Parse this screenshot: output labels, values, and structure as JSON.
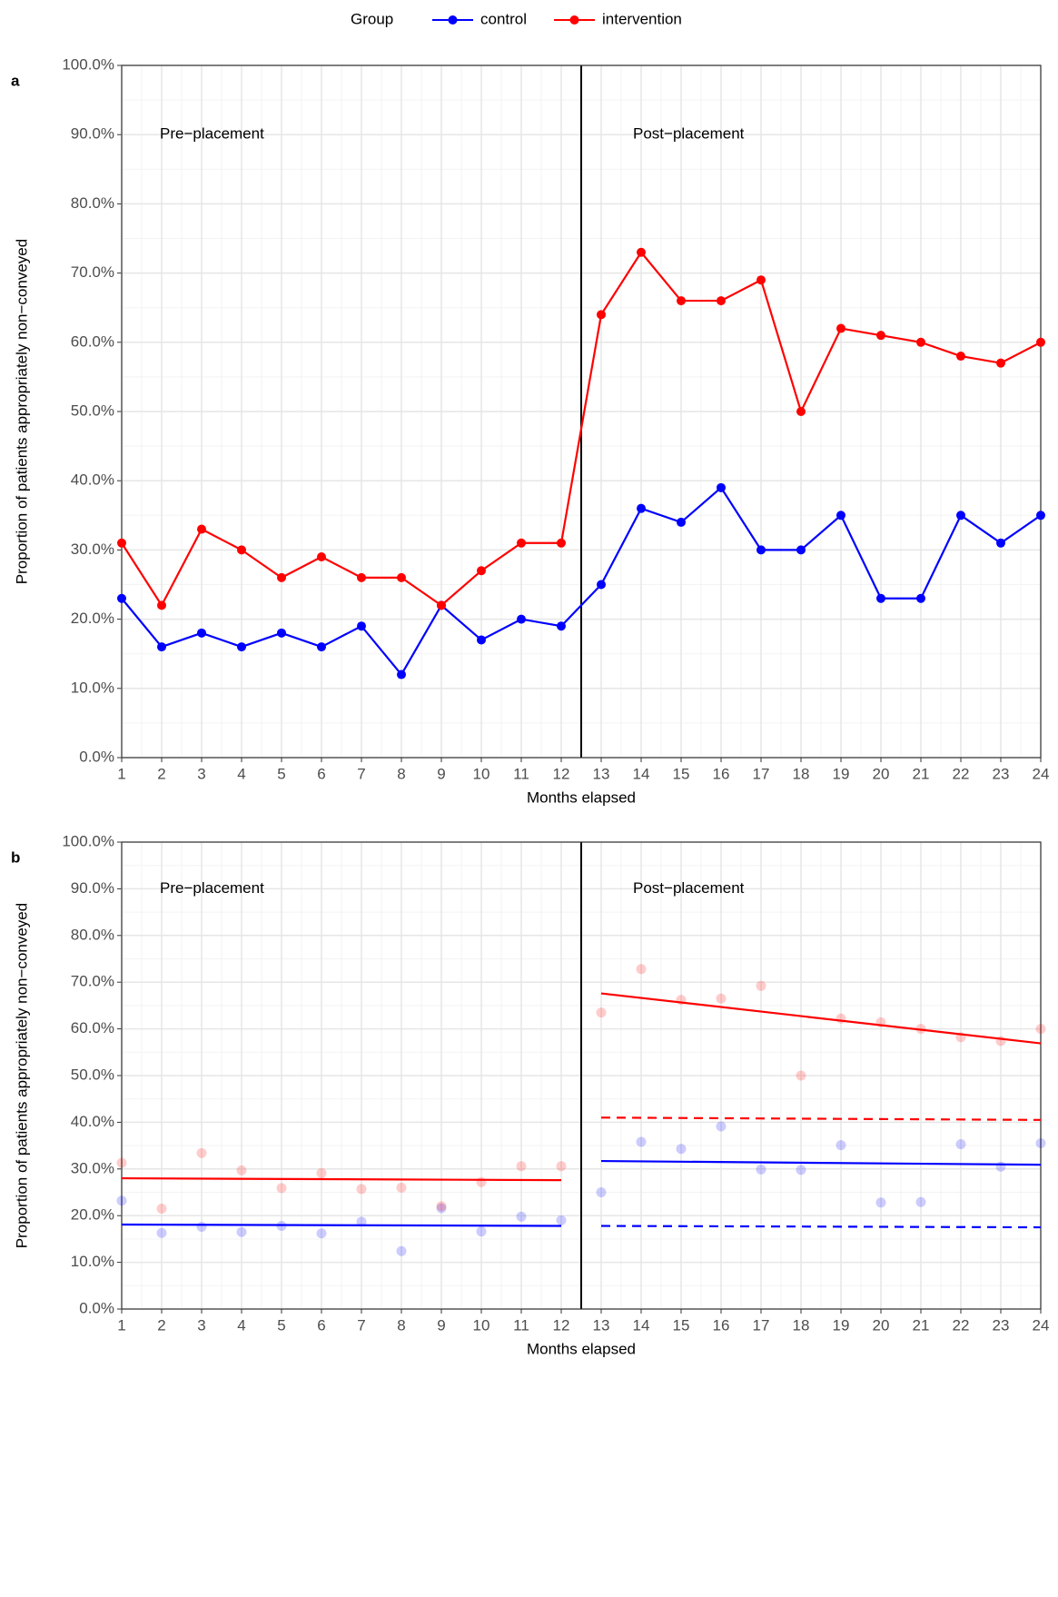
{
  "chart_data": [
    {
      "type": "line",
      "panel_label": "a",
      "legend_title": "Group",
      "legend": "top",
      "annotations": [
        "Pre−placement",
        "Post−placement"
      ],
      "x_label": "Months elapsed",
      "y_label": "Proportion of patients appropriately non−conveyed",
      "x": [
        1,
        2,
        3,
        4,
        5,
        6,
        7,
        8,
        9,
        10,
        11,
        12,
        13,
        14,
        15,
        16,
        17,
        18,
        19,
        20,
        21,
        22,
        23,
        24
      ],
      "series": [
        {
          "name": "control",
          "color": "#0000ff",
          "values": [
            23,
            16,
            18,
            16,
            18,
            16,
            19,
            12,
            22,
            17,
            20,
            19,
            25,
            36,
            34,
            39,
            30,
            30,
            35,
            23,
            23,
            35,
            31,
            35
          ]
        },
        {
          "name": "intervention",
          "color": "#ff0000",
          "values": [
            31,
            22,
            33,
            30,
            26,
            29,
            26,
            26,
            22,
            27,
            31,
            31,
            64,
            73,
            66,
            66,
            69,
            50,
            62,
            61,
            60,
            58,
            57,
            60
          ]
        }
      ],
      "xlim": [
        1,
        24
      ],
      "xticks": [
        1,
        2,
        3,
        4,
        5,
        6,
        7,
        8,
        9,
        10,
        11,
        12,
        13,
        14,
        15,
        16,
        17,
        18,
        19,
        20,
        21,
        22,
        23,
        24
      ],
      "ylim": [
        0,
        100
      ],
      "yticks": [
        {
          "value": 0,
          "label": "0.0%"
        },
        {
          "value": 10,
          "label": "10.0%"
        },
        {
          "value": 20,
          "label": "20.0%"
        },
        {
          "value": 30,
          "label": "30.0%"
        },
        {
          "value": 40,
          "label": "40.0%"
        },
        {
          "value": 50,
          "label": "50.0%"
        },
        {
          "value": 60,
          "label": "60.0%"
        },
        {
          "value": 70,
          "label": "70.0%"
        },
        {
          "value": 80,
          "label": "80.0%"
        },
        {
          "value": 90,
          "label": "90.0%"
        },
        {
          "value": 100,
          "label": "100.0%"
        }
      ],
      "grid": true
    },
    {
      "type": "scatter",
      "panel_label": "b",
      "annotations": [
        "Pre−placement",
        "Post−placement"
      ],
      "x_label": "Months elapsed",
      "y_label": "Proportion of patients appropriately non−conveyed",
      "x": [
        1,
        2,
        3,
        4,
        5,
        6,
        7,
        8,
        9,
        10,
        11,
        12,
        13,
        14,
        15,
        16,
        17,
        18,
        19,
        20,
        21,
        22,
        23,
        24
      ],
      "point_alpha": 0.2,
      "series": [
        {
          "name": "control",
          "color": "#0000ff",
          "values": [
            23.2,
            16.3,
            17.6,
            16.5,
            17.8,
            16.2,
            18.7,
            12.4,
            21.6,
            16.6,
            19.8,
            19.0,
            25.0,
            35.8,
            34.3,
            39.1,
            29.9,
            29.8,
            35.1,
            22.8,
            22.9,
            35.3,
            30.5,
            35.5
          ]
        },
        {
          "name": "intervention",
          "color": "#ff0000",
          "values": [
            31.3,
            21.5,
            33.4,
            29.7,
            25.9,
            29.1,
            25.7,
            26.0,
            22.0,
            27.2,
            30.6,
            30.6,
            63.5,
            72.8,
            66.2,
            66.5,
            69.2,
            50.0,
            62.2,
            61.4,
            60.0,
            58.2,
            57.4,
            60.0
          ]
        }
      ],
      "fits": [
        {
          "color": "#ff0000",
          "linestyle": "solid",
          "x": [
            1,
            12
          ],
          "values": [
            28.0,
            27.6
          ]
        },
        {
          "color": "#0000ff",
          "linestyle": "solid",
          "x": [
            1,
            12
          ],
          "values": [
            18.1,
            17.8
          ]
        },
        {
          "color": "#ff0000",
          "linestyle": "solid",
          "x": [
            13,
            24
          ],
          "values": [
            67.6,
            56.9
          ]
        },
        {
          "color": "#ff0000",
          "linestyle": "dashed",
          "x": [
            13,
            24
          ],
          "values": [
            41.0,
            40.5
          ]
        },
        {
          "color": "#0000ff",
          "linestyle": "solid",
          "x": [
            13,
            24
          ],
          "values": [
            31.7,
            30.9
          ]
        },
        {
          "color": "#0000ff",
          "linestyle": "dashed",
          "x": [
            13,
            24
          ],
          "values": [
            17.8,
            17.5
          ]
        }
      ],
      "xlim": [
        1,
        24
      ],
      "xticks": [
        1,
        2,
        3,
        4,
        5,
        6,
        7,
        8,
        9,
        10,
        11,
        12,
        13,
        14,
        15,
        16,
        17,
        18,
        19,
        20,
        21,
        22,
        23,
        24
      ],
      "ylim": [
        0,
        100
      ],
      "yticks": [
        {
          "value": 0,
          "label": "0.0%"
        },
        {
          "value": 10,
          "label": "10.0%"
        },
        {
          "value": 20,
          "label": "20.0%"
        },
        {
          "value": 30,
          "label": "30.0%"
        },
        {
          "value": 40,
          "label": "40.0%"
        },
        {
          "value": 50,
          "label": "50.0%"
        },
        {
          "value": 60,
          "label": "60.0%"
        },
        {
          "value": 70,
          "label": "70.0%"
        },
        {
          "value": 80,
          "label": "80.0%"
        },
        {
          "value": 90,
          "label": "90.0%"
        },
        {
          "value": 100,
          "label": "100.0%"
        }
      ],
      "grid": true
    }
  ]
}
